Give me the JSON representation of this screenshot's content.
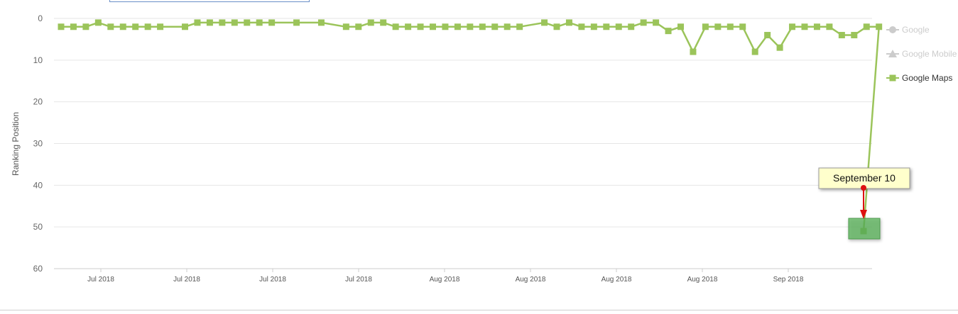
{
  "chart_data": {
    "type": "line",
    "ylabel": "Ranking Position",
    "ylim": [
      60,
      0
    ],
    "y_ticks": [
      "0",
      "10",
      "20",
      "30",
      "40",
      "50",
      "60"
    ],
    "x_tick_labels": [
      "Jul 2018",
      "Jul 2018",
      "Jul 2018",
      "Jul 2018",
      "Aug 2018",
      "Aug 2018",
      "Aug 2018",
      "Aug 2018",
      "Sep 2018"
    ],
    "grid": true,
    "legend": {
      "placement": "right",
      "items": [
        {
          "name": "Google",
          "marker": "circle",
          "active": false
        },
        {
          "name": "Google Mobile",
          "marker": "triangle",
          "active": false
        },
        {
          "name": "Google Maps",
          "marker": "square",
          "active": true
        }
      ]
    },
    "series": [
      {
        "name": "Google Maps",
        "color": "#9bc45a",
        "values": [
          2,
          2,
          2,
          1,
          2,
          2,
          2,
          2,
          2,
          null,
          2,
          1,
          1,
          1,
          1,
          1,
          1,
          1,
          null,
          1,
          null,
          1,
          null,
          2,
          2,
          1,
          1,
          2,
          2,
          2,
          2,
          2,
          2,
          2,
          2,
          2,
          2,
          2,
          null,
          1,
          2,
          1,
          2,
          2,
          2,
          2,
          2,
          1,
          1,
          3,
          2,
          8,
          2,
          2,
          2,
          2,
          8,
          4,
          7,
          2,
          2,
          2,
          2,
          4,
          4,
          2,
          2,
          51
        ],
        "point_visible": [
          true,
          true,
          true,
          true,
          true,
          true,
          true,
          true,
          true,
          false,
          true,
          true,
          true,
          true,
          true,
          true,
          true,
          true,
          false,
          true,
          false,
          true,
          false,
          true,
          true,
          true,
          true,
          true,
          true,
          true,
          true,
          true,
          true,
          true,
          true,
          true,
          true,
          true,
          false,
          true,
          true,
          true,
          true,
          true,
          true,
          true,
          true,
          true,
          true,
          true,
          true,
          true,
          true,
          true,
          true,
          true,
          true,
          true,
          true,
          true,
          true,
          true,
          true,
          true,
          true,
          true,
          true,
          true
        ]
      }
    ],
    "annotation": {
      "text": "September 10",
      "target_index": 67
    }
  },
  "colors": {
    "series": "#9bc45a",
    "legend_inactive": "#cccccc",
    "legend_active": "#333333",
    "callout_bg": "#ffffcc",
    "arrow": "#dd1111",
    "highlight": "#5cb85c",
    "grid": "#e6e6e6",
    "axis": "#cccccc"
  }
}
